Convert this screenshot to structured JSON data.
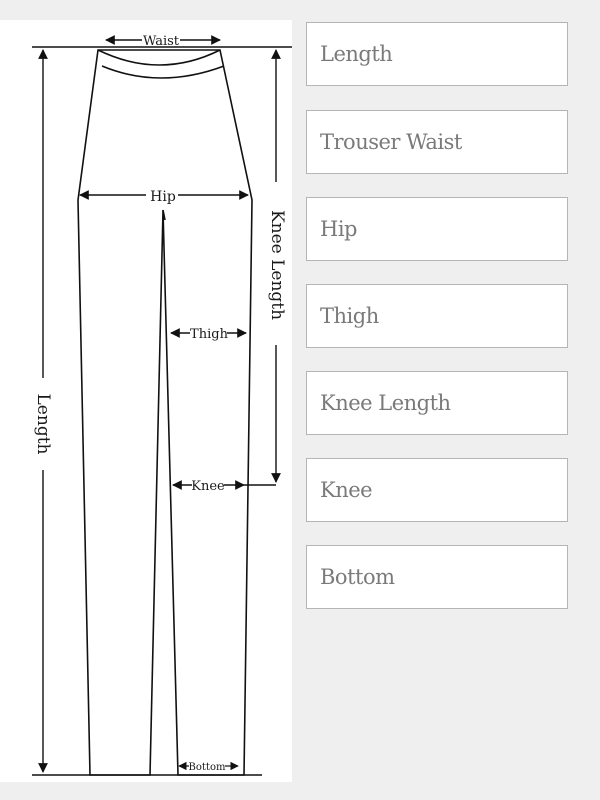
{
  "diagram": {
    "waist_label": "Waist",
    "hip_label": "Hip",
    "thigh_label": "Thigh",
    "knee_label": "Knee",
    "bottom_label": "Bottom",
    "length_label": "Length",
    "knee_length_label": "Knee Length"
  },
  "fields": [
    {
      "placeholder": "Length"
    },
    {
      "placeholder": "Trouser Waist"
    },
    {
      "placeholder": "Hip"
    },
    {
      "placeholder": "Thigh"
    },
    {
      "placeholder": "Knee Length"
    },
    {
      "placeholder": "Knee"
    },
    {
      "placeholder": "Bottom"
    }
  ]
}
